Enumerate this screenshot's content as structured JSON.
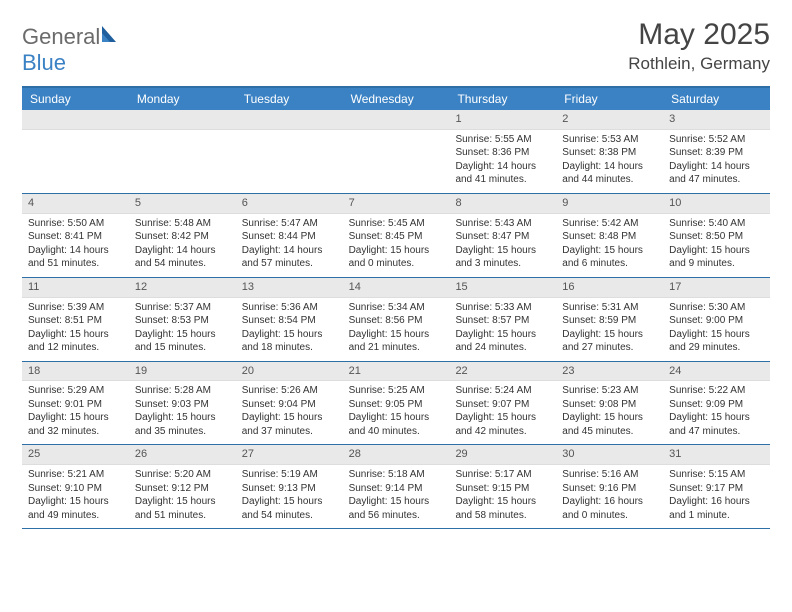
{
  "brand": {
    "name_gray": "General",
    "name_blue": "Blue"
  },
  "title": "May 2025",
  "location": "Rothlein, Germany",
  "colors": {
    "header_bg": "#3b82c4",
    "border": "#2f6fa8",
    "daynum_bg": "#e9e9e9",
    "text": "#333333",
    "logo_gray": "#6b6b6b"
  },
  "day_headers": [
    "Sunday",
    "Monday",
    "Tuesday",
    "Wednesday",
    "Thursday",
    "Friday",
    "Saturday"
  ],
  "weeks": [
    [
      null,
      null,
      null,
      null,
      {
        "n": "1",
        "sr": "5:55 AM",
        "ss": "8:36 PM",
        "dl": "14 hours and 41 minutes."
      },
      {
        "n": "2",
        "sr": "5:53 AM",
        "ss": "8:38 PM",
        "dl": "14 hours and 44 minutes."
      },
      {
        "n": "3",
        "sr": "5:52 AM",
        "ss": "8:39 PM",
        "dl": "14 hours and 47 minutes."
      }
    ],
    [
      {
        "n": "4",
        "sr": "5:50 AM",
        "ss": "8:41 PM",
        "dl": "14 hours and 51 minutes."
      },
      {
        "n": "5",
        "sr": "5:48 AM",
        "ss": "8:42 PM",
        "dl": "14 hours and 54 minutes."
      },
      {
        "n": "6",
        "sr": "5:47 AM",
        "ss": "8:44 PM",
        "dl": "14 hours and 57 minutes."
      },
      {
        "n": "7",
        "sr": "5:45 AM",
        "ss": "8:45 PM",
        "dl": "15 hours and 0 minutes."
      },
      {
        "n": "8",
        "sr": "5:43 AM",
        "ss": "8:47 PM",
        "dl": "15 hours and 3 minutes."
      },
      {
        "n": "9",
        "sr": "5:42 AM",
        "ss": "8:48 PM",
        "dl": "15 hours and 6 minutes."
      },
      {
        "n": "10",
        "sr": "5:40 AM",
        "ss": "8:50 PM",
        "dl": "15 hours and 9 minutes."
      }
    ],
    [
      {
        "n": "11",
        "sr": "5:39 AM",
        "ss": "8:51 PM",
        "dl": "15 hours and 12 minutes."
      },
      {
        "n": "12",
        "sr": "5:37 AM",
        "ss": "8:53 PM",
        "dl": "15 hours and 15 minutes."
      },
      {
        "n": "13",
        "sr": "5:36 AM",
        "ss": "8:54 PM",
        "dl": "15 hours and 18 minutes."
      },
      {
        "n": "14",
        "sr": "5:34 AM",
        "ss": "8:56 PM",
        "dl": "15 hours and 21 minutes."
      },
      {
        "n": "15",
        "sr": "5:33 AM",
        "ss": "8:57 PM",
        "dl": "15 hours and 24 minutes."
      },
      {
        "n": "16",
        "sr": "5:31 AM",
        "ss": "8:59 PM",
        "dl": "15 hours and 27 minutes."
      },
      {
        "n": "17",
        "sr": "5:30 AM",
        "ss": "9:00 PM",
        "dl": "15 hours and 29 minutes."
      }
    ],
    [
      {
        "n": "18",
        "sr": "5:29 AM",
        "ss": "9:01 PM",
        "dl": "15 hours and 32 minutes."
      },
      {
        "n": "19",
        "sr": "5:28 AM",
        "ss": "9:03 PM",
        "dl": "15 hours and 35 minutes."
      },
      {
        "n": "20",
        "sr": "5:26 AM",
        "ss": "9:04 PM",
        "dl": "15 hours and 37 minutes."
      },
      {
        "n": "21",
        "sr": "5:25 AM",
        "ss": "9:05 PM",
        "dl": "15 hours and 40 minutes."
      },
      {
        "n": "22",
        "sr": "5:24 AM",
        "ss": "9:07 PM",
        "dl": "15 hours and 42 minutes."
      },
      {
        "n": "23",
        "sr": "5:23 AM",
        "ss": "9:08 PM",
        "dl": "15 hours and 45 minutes."
      },
      {
        "n": "24",
        "sr": "5:22 AM",
        "ss": "9:09 PM",
        "dl": "15 hours and 47 minutes."
      }
    ],
    [
      {
        "n": "25",
        "sr": "5:21 AM",
        "ss": "9:10 PM",
        "dl": "15 hours and 49 minutes."
      },
      {
        "n": "26",
        "sr": "5:20 AM",
        "ss": "9:12 PM",
        "dl": "15 hours and 51 minutes."
      },
      {
        "n": "27",
        "sr": "5:19 AM",
        "ss": "9:13 PM",
        "dl": "15 hours and 54 minutes."
      },
      {
        "n": "28",
        "sr": "5:18 AM",
        "ss": "9:14 PM",
        "dl": "15 hours and 56 minutes."
      },
      {
        "n": "29",
        "sr": "5:17 AM",
        "ss": "9:15 PM",
        "dl": "15 hours and 58 minutes."
      },
      {
        "n": "30",
        "sr": "5:16 AM",
        "ss": "9:16 PM",
        "dl": "16 hours and 0 minutes."
      },
      {
        "n": "31",
        "sr": "5:15 AM",
        "ss": "9:17 PM",
        "dl": "16 hours and 1 minute."
      }
    ]
  ],
  "labels": {
    "sunrise": "Sunrise:",
    "sunset": "Sunset:",
    "daylight": "Daylight:"
  }
}
